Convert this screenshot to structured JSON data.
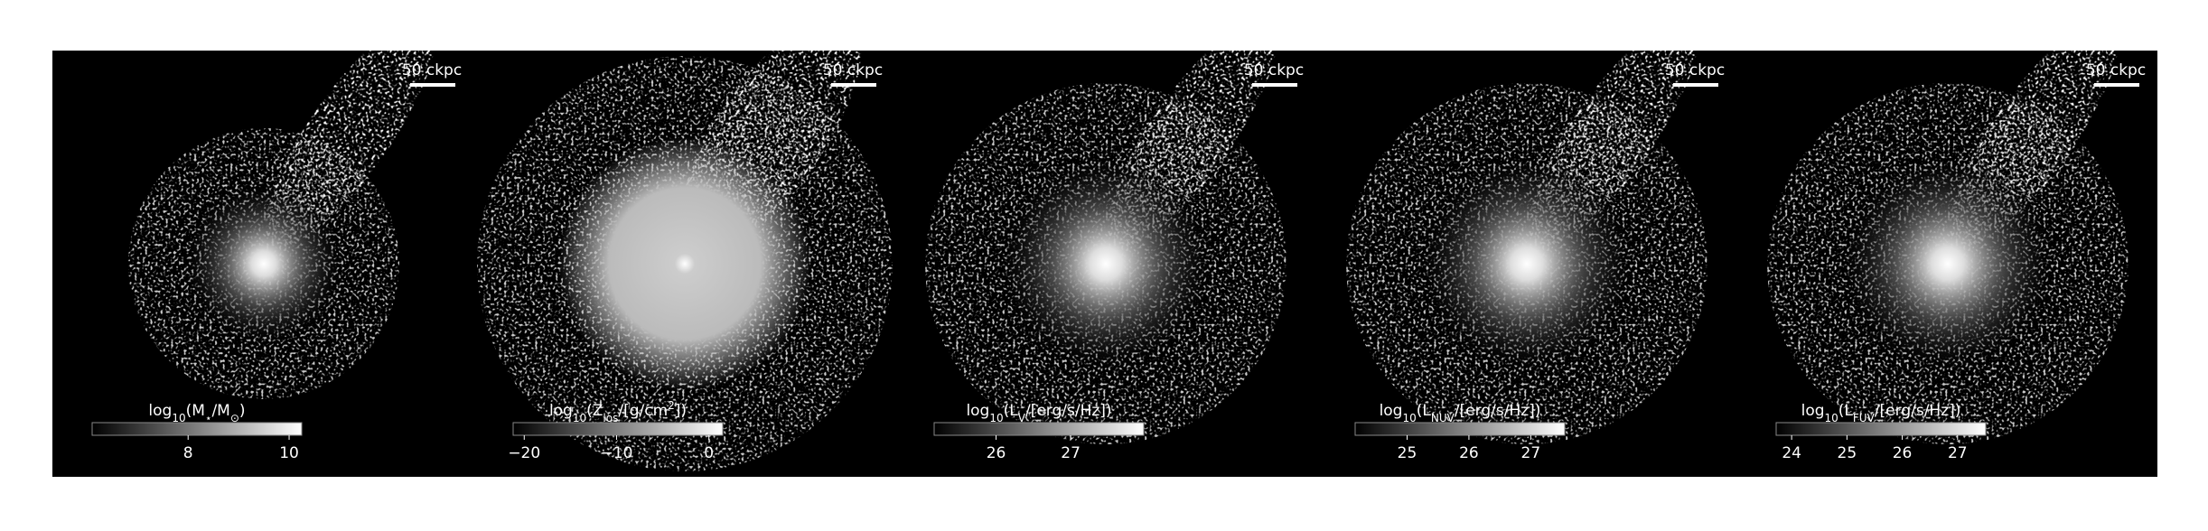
{
  "chart_data": [
    {
      "type": "image",
      "scale_bar": "50 ckpc",
      "colorbar": {
        "label": [
          {
            "text": "log"
          },
          {
            "text": "10",
            "script": "sub"
          },
          {
            "text": "(M"
          },
          {
            "text": "⋆",
            "script": "sub"
          },
          {
            "text": "/M"
          },
          {
            "text": "⊙",
            "script": "sub"
          },
          {
            "text": ")"
          }
        ],
        "lim": [
          6.1,
          10.25
        ],
        "ticks": [
          8,
          10
        ]
      }
    },
    {
      "type": "image",
      "scale_bar": "50 ckpc",
      "colorbar": {
        "label": [
          {
            "text": "log"
          },
          {
            "text": "10",
            "script": "sub"
          },
          {
            "text": "(Z"
          },
          {
            "text": "los",
            "script": "sub"
          },
          {
            "text": "/[g/cm"
          },
          {
            "text": "2",
            "script": "super"
          },
          {
            "text": "])"
          }
        ],
        "lim": [
          -21.2,
          1.5
        ],
        "ticks": [
          {
            "value": -20,
            "label": "−20"
          },
          {
            "value": -10,
            "label": "−10"
          },
          0
        ]
      }
    },
    {
      "type": "image",
      "scale_bar": "50 ckpc",
      "colorbar": {
        "label": [
          {
            "text": "log"
          },
          {
            "text": "10",
            "script": "sub"
          },
          {
            "text": "(L"
          },
          {
            "text": "V",
            "script": "sub"
          },
          {
            "text": "/[erg/s/Hz])"
          }
        ],
        "lim": [
          25.17,
          27.98
        ],
        "ticks": [
          26,
          27
        ]
      }
    },
    {
      "type": "image",
      "scale_bar": "50 ckpc",
      "colorbar": {
        "label": [
          {
            "text": "log"
          },
          {
            "text": "10",
            "script": "sub"
          },
          {
            "text": "(L"
          },
          {
            "text": "NUV",
            "script": "sub"
          },
          {
            "text": "/[erg/s/Hz])"
          }
        ],
        "lim": [
          24.16,
          27.55
        ],
        "ticks": [
          25,
          26,
          27
        ]
      }
    },
    {
      "type": "image",
      "scale_bar": "50 ckpc",
      "colorbar": {
        "label": [
          {
            "text": "log"
          },
          {
            "text": "10",
            "script": "sub"
          },
          {
            "text": "(L"
          },
          {
            "text": "FUV",
            "script": "sub"
          },
          {
            "text": "/[erg/s/Hz])"
          }
        ],
        "lim": [
          23.72,
          27.51
        ],
        "ticks": [
          24,
          25,
          26,
          27
        ]
      }
    }
  ]
}
